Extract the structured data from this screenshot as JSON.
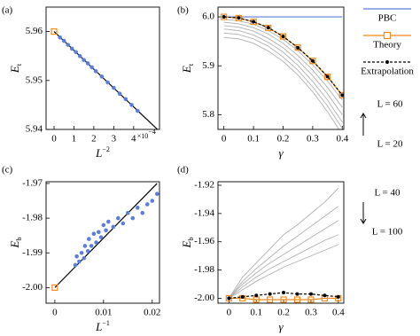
{
  "chart_data": [
    {
      "type": "scatter",
      "panel_label": "(a)",
      "xlabel": {
        "base": "L",
        "sup": "−2"
      },
      "ylabel": {
        "base": "E",
        "sub": "t"
      },
      "x_multiplier": {
        "base": "×10",
        "sup": "−4"
      },
      "xlim": [
        -0.4,
        5.3
      ],
      "ylim": [
        5.94,
        5.965
      ],
      "xticks": [
        0,
        1,
        2,
        3,
        4
      ],
      "yticks": [
        5.94,
        5.95,
        5.96
      ],
      "series": [
        {
          "style": "line",
          "color": "#000000",
          "x": [
            0,
            5.2
          ],
          "values": [
            5.96,
            5.94
          ]
        },
        {
          "style": "points",
          "color": "#5b7fd8",
          "x": [
            0.3,
            0.5,
            0.7,
            0.9,
            1.1,
            1.3,
            1.5,
            1.7,
            1.9,
            2.1,
            2.4,
            2.7,
            3.0,
            3.3,
            3.6,
            3.9,
            4.2
          ],
          "values": [
            5.9588,
            5.9581,
            5.9573,
            5.9565,
            5.9558,
            5.955,
            5.9542,
            5.9535,
            5.9527,
            5.9519,
            5.9508,
            5.9496,
            5.9485,
            5.9473,
            5.9462,
            5.945,
            5.9438
          ]
        },
        {
          "style": "squares",
          "color": "#f28a1a",
          "x": [
            0
          ],
          "values": [
            5.96
          ]
        }
      ]
    },
    {
      "type": "line",
      "panel_label": "(b)",
      "xlabel": {
        "base": "γ"
      },
      "ylabel": {
        "base": "E",
        "sub": "t"
      },
      "xlim": [
        -0.02,
        0.405
      ],
      "ylim": [
        5.77,
        6.02
      ],
      "xticks": [
        0,
        0.1,
        0.2,
        0.3,
        0.4
      ],
      "yticks": [
        5.8,
        5.9,
        {
          "value": 6,
          "label": "6.0"
        }
      ],
      "x": [
        0,
        0.05,
        0.1,
        0.15,
        0.2,
        0.25,
        0.3,
        0.35,
        0.4
      ],
      "legend": "outside-right",
      "annotations": [
        "L = 60",
        "L = 20"
      ],
      "series": [
        {
          "style": "line",
          "color": "#b0b0b0",
          "values": [
            5.995,
            5.992,
            5.985,
            5.972,
            5.954,
            5.931,
            5.902,
            5.869,
            5.83
          ]
        },
        {
          "style": "line",
          "color": "#b0b0b0",
          "values": [
            5.989,
            5.986,
            5.978,
            5.965,
            5.946,
            5.921,
            5.891,
            5.856,
            5.815
          ]
        },
        {
          "style": "line",
          "color": "#b0b0b0",
          "values": [
            5.982,
            5.979,
            5.971,
            5.956,
            5.937,
            5.911,
            5.88,
            5.843,
            5.8
          ]
        },
        {
          "style": "line",
          "color": "#b0b0b0",
          "values": [
            5.975,
            5.972,
            5.963,
            5.948,
            5.928,
            5.901,
            5.868,
            5.83,
            5.785
          ]
        },
        {
          "style": "line",
          "color": "#b0b0b0",
          "values": [
            5.967,
            5.964,
            5.955,
            5.94,
            5.918,
            5.891,
            5.857,
            5.818,
            5.772
          ]
        },
        {
          "style": "line",
          "color": "#b0b0b0",
          "values": [
            5.958,
            5.955,
            5.946,
            5.93,
            5.909,
            5.881,
            5.847,
            5.806,
            5.76
          ]
        },
        {
          "name": "PBC",
          "style": "line",
          "color": "#5b7fd8",
          "values": [
            6.0,
            6.0,
            6.0,
            6.0,
            6.0,
            6.0,
            6.0,
            6.0,
            6.0
          ]
        },
        {
          "name": "Theory",
          "style": "line-squares",
          "color": "#f28a1a",
          "values": [
            6.0,
            5.9975,
            5.99,
            5.9775,
            5.96,
            5.9375,
            5.91,
            5.8775,
            5.84
          ]
        },
        {
          "name": "Extrapolation",
          "style": "dashed-dots",
          "color": "#000000",
          "values": [
            6.0,
            5.998,
            5.99,
            5.978,
            5.96,
            5.937,
            5.91,
            5.878,
            5.84
          ]
        }
      ]
    },
    {
      "type": "scatter",
      "panel_label": "(c)",
      "xlabel": {
        "base": "L",
        "sup": "−1"
      },
      "ylabel": {
        "base": "E",
        "sub": "b"
      },
      "xlim": [
        -0.0018,
        0.0215
      ],
      "ylim": [
        -2.0045,
        -1.9695
      ],
      "xticks": [
        0,
        0.01,
        0.02
      ],
      "yticks": [
        {
          "value": -2,
          "label": "-2.00"
        },
        -1.99,
        -1.98,
        -1.97
      ],
      "series": [
        {
          "style": "line",
          "color": "#000000",
          "x": [
            0,
            0.021
          ],
          "values": [
            -2.0,
            -1.97
          ]
        },
        {
          "style": "points",
          "color": "#5b7fd8",
          "x": [
            0.0042,
            0.0045,
            0.005,
            0.0055,
            0.006,
            0.0062,
            0.0068,
            0.007,
            0.0075,
            0.008,
            0.0085,
            0.009,
            0.0095,
            0.01,
            0.0105,
            0.011,
            0.012,
            0.013,
            0.014,
            0.015,
            0.016,
            0.017,
            0.018,
            0.019,
            0.02,
            0.021
          ],
          "values": [
            -1.9935,
            -1.991,
            -1.9925,
            -1.99,
            -1.9915,
            -1.988,
            -1.9895,
            -1.986,
            -1.988,
            -1.9845,
            -1.987,
            -1.984,
            -1.9855,
            -1.982,
            -1.9835,
            -1.981,
            -1.9825,
            -1.98,
            -1.9815,
            -1.9785,
            -1.98,
            -1.977,
            -1.9785,
            -1.976,
            -1.975,
            -1.973
          ]
        },
        {
          "style": "squares",
          "color": "#f28a1a",
          "x": [
            0
          ],
          "values": [
            -2.0
          ]
        }
      ]
    },
    {
      "type": "line",
      "panel_label": "(d)",
      "xlabel": {
        "base": "γ"
      },
      "ylabel": {
        "base": "E",
        "sub": "b"
      },
      "xlim": [
        -0.04,
        0.42
      ],
      "ylim": [
        -2.0035,
        -1.9175
      ],
      "xticks": [
        0,
        0.1,
        0.2,
        0.3,
        0.4
      ],
      "yticks": [
        {
          "value": -2,
          "label": "-2.00"
        },
        -1.98,
        -1.96,
        -1.94,
        -1.92
      ],
      "x": [
        0,
        0.05,
        0.1,
        0.15,
        0.2,
        0.25,
        0.3,
        0.35,
        0.4
      ],
      "annotations": [
        "L = 40",
        "L = 100"
      ],
      "series": [
        {
          "style": "line",
          "color": "#b0b0b0",
          "values": [
            -2.0,
            -1.985,
            -1.975,
            -1.965,
            -1.955,
            -1.948,
            -1.94,
            -1.932,
            -1.922
          ]
        },
        {
          "style": "line",
          "color": "#b0b0b0",
          "values": [
            -2.0,
            -1.988,
            -1.979,
            -1.971,
            -1.963,
            -1.956,
            -1.949,
            -1.942,
            -1.935
          ]
        },
        {
          "style": "line",
          "color": "#b0b0b0",
          "values": [
            -2.0,
            -1.99,
            -1.982,
            -1.975,
            -1.969,
            -1.963,
            -1.957,
            -1.951,
            -1.945
          ]
        },
        {
          "style": "line",
          "color": "#b0b0b0",
          "values": [
            -2.0,
            -1.992,
            -1.985,
            -1.979,
            -1.974,
            -1.969,
            -1.964,
            -1.959,
            -1.955
          ]
        },
        {
          "style": "line",
          "color": "#b0b0b0",
          "values": [
            -2.0,
            -1.994,
            -1.988,
            -1.983,
            -1.978,
            -1.974,
            -1.97,
            -1.966,
            -1.962
          ]
        },
        {
          "style": "line-squares",
          "color": "#f28a1a",
          "values": [
            -2.0,
            -2.0,
            -2.001,
            -2.001,
            -2.001,
            -2.001,
            -2.001,
            -2.0,
            -2.0
          ]
        },
        {
          "style": "dashed-dots",
          "color": "#000000",
          "values": [
            -2.0,
            -1.999,
            -1.998,
            -1.997,
            -1.996,
            -1.997,
            -1.997,
            -1.998,
            -1.999
          ]
        }
      ]
    }
  ]
}
